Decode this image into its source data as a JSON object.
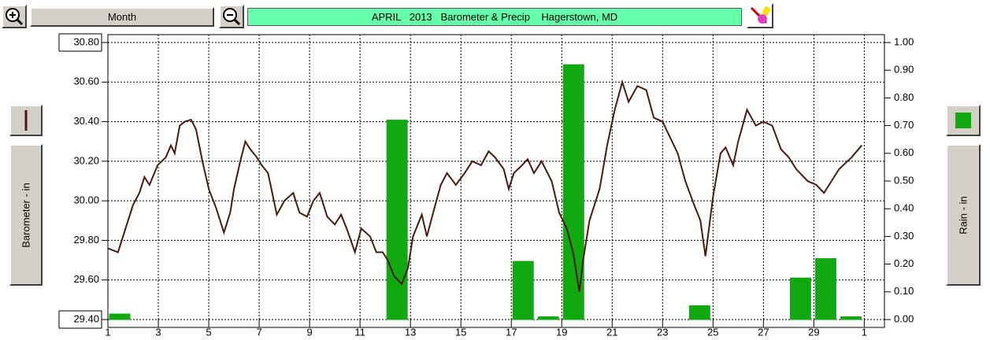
{
  "toolbar": {
    "period_button": "Month"
  },
  "chart_data": {
    "type": "combo",
    "title": "APRIL   2013   Barometer & Precip    Hagerstown, MD",
    "xlim": [
      1,
      31.8
    ],
    "xticks": [
      1,
      3,
      5,
      7,
      9,
      11,
      13,
      15,
      17,
      19,
      21,
      23,
      25,
      27,
      29,
      {
        "value": 31,
        "label": "1"
      }
    ],
    "ylim": [
      29.4,
      30.8
    ],
    "yticks": [
      {
        "value": 29.4,
        "label": "29.40"
      },
      {
        "value": 29.6,
        "label": "29.60"
      },
      {
        "value": 29.8,
        "label": "29.80"
      },
      {
        "value": 30.0,
        "label": "30.00"
      },
      {
        "value": 30.2,
        "label": "30.20"
      },
      {
        "value": 30.4,
        "label": "30.40"
      },
      {
        "value": 30.6,
        "label": "30.60"
      },
      {
        "value": 30.8,
        "label": "30.80"
      }
    ],
    "y2lim": [
      0,
      1
    ],
    "y2ticks": [
      {
        "value": 0,
        "label": "0.00"
      },
      {
        "value": 0.1,
        "label": "0.10"
      },
      {
        "value": 0.2,
        "label": "0.20"
      },
      {
        "value": 0.3,
        "label": "0.30"
      },
      {
        "value": 0.4,
        "label": "0.40"
      },
      {
        "value": 0.5,
        "label": "0.50"
      },
      {
        "value": 0.6,
        "label": "0.60"
      },
      {
        "value": 0.7,
        "label": "0.70"
      },
      {
        "value": 0.8,
        "label": "0.80"
      },
      {
        "value": 0.9,
        "label": "0.90"
      },
      {
        "value": 1,
        "label": "1.00"
      }
    ],
    "grid": true,
    "series": [
      {
        "name": "Barometer - in",
        "type": "line",
        "color": "#4a1a10",
        "x": [
          1,
          1.4,
          1.7,
          2.0,
          2.25,
          2.45,
          2.65,
          2.97,
          3.3,
          3.5,
          3.65,
          3.85,
          4.05,
          4.3,
          4.5,
          4.75,
          5.0,
          5.3,
          5.6,
          5.85,
          6.0,
          6.25,
          6.45,
          6.65,
          6.9,
          7.1,
          7.35,
          7.7,
          8.0,
          8.35,
          8.6,
          8.9,
          9.15,
          9.4,
          9.7,
          10.0,
          10.25,
          10.5,
          10.8,
          11.05,
          11.4,
          11.65,
          11.9,
          12.1,
          12.35,
          12.65,
          12.9,
          13.1,
          13.45,
          13.65,
          13.9,
          14.2,
          14.45,
          14.8,
          15.15,
          15.45,
          15.8,
          16.1,
          16.35,
          16.7,
          16.9,
          17.1,
          17.35,
          17.65,
          17.9,
          18.2,
          18.6,
          18.9,
          19.2,
          19.45,
          19.7,
          19.85,
          20.1,
          20.5,
          20.8,
          21.1,
          21.4,
          21.65,
          22.0,
          22.35,
          22.65,
          23.0,
          23.3,
          23.6,
          23.9,
          24.25,
          24.5,
          24.7,
          25.0,
          25.3,
          25.5,
          25.8,
          26.0,
          26.35,
          26.7,
          27.0,
          27.35,
          27.7,
          28.0,
          28.3,
          28.75,
          29.1,
          29.4,
          29.7,
          30.0,
          30.5,
          30.9
        ],
        "values": [
          29.76,
          29.74,
          29.86,
          29.98,
          30.04,
          30.12,
          30.08,
          30.18,
          30.22,
          30.28,
          30.24,
          30.38,
          30.4,
          30.41,
          30.36,
          30.2,
          30.06,
          29.96,
          29.84,
          29.94,
          30.06,
          30.2,
          30.3,
          30.26,
          30.22,
          30.18,
          30.14,
          29.93,
          30.0,
          30.04,
          29.94,
          29.92,
          30.0,
          30.04,
          29.92,
          29.88,
          29.93,
          29.85,
          29.74,
          29.86,
          29.82,
          29.74,
          29.74,
          29.7,
          29.62,
          29.58,
          29.66,
          29.82,
          29.93,
          29.82,
          29.94,
          30.08,
          30.14,
          30.08,
          30.14,
          30.2,
          30.18,
          30.25,
          30.22,
          30.16,
          30.06,
          30.14,
          30.17,
          30.21,
          30.14,
          30.2,
          30.1,
          29.94,
          29.86,
          29.74,
          29.54,
          29.7,
          29.9,
          30.06,
          30.28,
          30.46,
          30.6,
          30.5,
          30.58,
          30.56,
          30.42,
          30.4,
          30.32,
          30.24,
          30.1,
          29.98,
          29.9,
          29.72,
          30.02,
          30.24,
          30.27,
          30.18,
          30.3,
          30.46,
          30.38,
          30.4,
          30.38,
          30.26,
          30.22,
          30.16,
          30.1,
          30.08,
          30.04,
          30.1,
          30.16,
          30.22,
          30.28
        ]
      },
      {
        "name": "Rain - in",
        "type": "bar",
        "axis": "y2",
        "color": "#10aa10",
        "x": [
          1,
          2,
          3,
          4,
          5,
          6,
          7,
          8,
          9,
          10,
          11,
          12,
          13,
          14,
          15,
          16,
          17,
          18,
          19,
          20,
          21,
          22,
          23,
          24,
          25,
          26,
          27,
          28,
          29,
          30
        ],
        "values": [
          0.02,
          0,
          0,
          0,
          0,
          0,
          0,
          0,
          0,
          0,
          0,
          0.72,
          0,
          0,
          0,
          0,
          0.21,
          0.01,
          0.92,
          0,
          0,
          0,
          0,
          0.05,
          0,
          0,
          0,
          0.15,
          0.22,
          0.01
        ]
      }
    ]
  }
}
